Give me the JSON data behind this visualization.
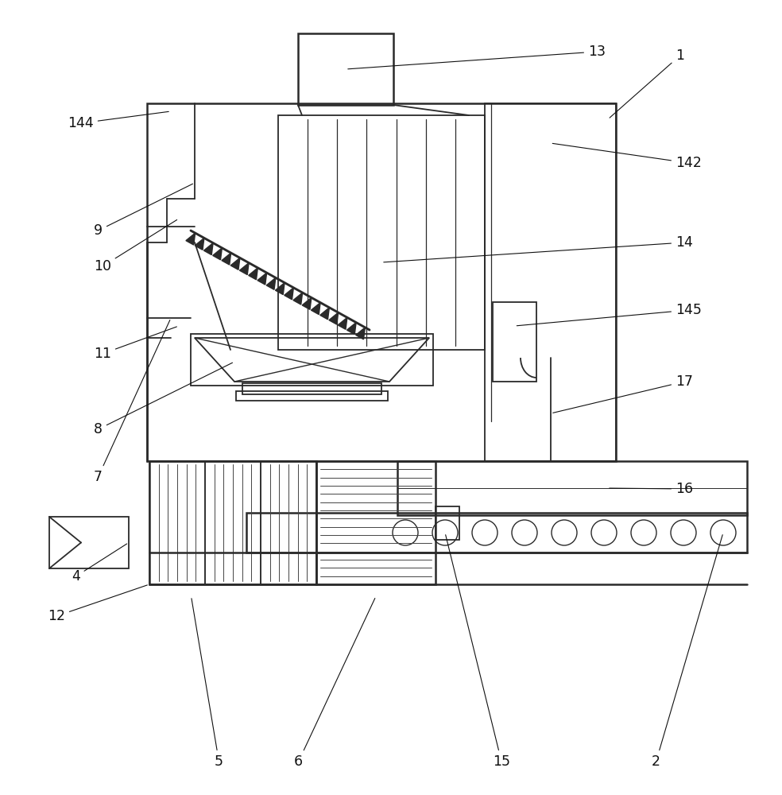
{
  "bg_color": "#ffffff",
  "lc": "#2a2a2a",
  "lw_main": 1.8,
  "lw_inner": 1.3,
  "lw_fine": 0.7,
  "label_fs": 12.5,
  "fig_width": 9.84,
  "fig_height": 10.0
}
